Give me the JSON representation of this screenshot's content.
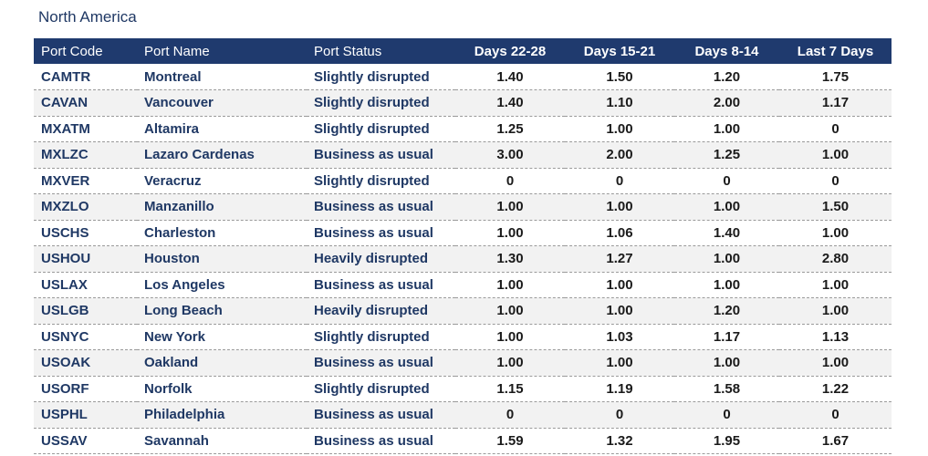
{
  "region": {
    "title": "North America"
  },
  "table": {
    "headers": {
      "port_code": "Port Code",
      "port_name": "Port Name",
      "port_status": "Port Status",
      "days_22_28": "Days 22-28",
      "days_15_21": "Days 15-21",
      "days_8_14": "Days 8-14",
      "last_7_days": "Last 7 Days"
    },
    "rows": [
      {
        "code": "CAMTR",
        "name": "Montreal",
        "status": "Slightly disrupted",
        "d22_28": "1.40",
        "d15_21": "1.50",
        "d8_14": "1.20",
        "last7": "1.75"
      },
      {
        "code": "CAVAN",
        "name": "Vancouver",
        "status": "Slightly disrupted",
        "d22_28": "1.40",
        "d15_21": "1.10",
        "d8_14": "2.00",
        "last7": "1.17"
      },
      {
        "code": "MXATM",
        "name": "Altamira",
        "status": "Slightly disrupted",
        "d22_28": "1.25",
        "d15_21": "1.00",
        "d8_14": "1.00",
        "last7": "0"
      },
      {
        "code": "MXLZC",
        "name": "Lazaro Cardenas",
        "status": "Business as usual",
        "d22_28": "3.00",
        "d15_21": "2.00",
        "d8_14": "1.25",
        "last7": "1.00"
      },
      {
        "code": "MXVER",
        "name": "Veracruz",
        "status": "Slightly disrupted",
        "d22_28": "0",
        "d15_21": "0",
        "d8_14": "0",
        "last7": "0"
      },
      {
        "code": "MXZLO",
        "name": "Manzanillo",
        "status": "Business as usual",
        "d22_28": "1.00",
        "d15_21": "1.00",
        "d8_14": "1.00",
        "last7": "1.50"
      },
      {
        "code": "USCHS",
        "name": "Charleston",
        "status": "Business as usual",
        "d22_28": "1.00",
        "d15_21": "1.06",
        "d8_14": "1.40",
        "last7": "1.00"
      },
      {
        "code": "USHOU",
        "name": "Houston",
        "status": "Heavily disrupted",
        "d22_28": "1.30",
        "d15_21": "1.27",
        "d8_14": "1.00",
        "last7": "2.80"
      },
      {
        "code": "USLAX",
        "name": "Los Angeles",
        "status": "Business as usual",
        "d22_28": "1.00",
        "d15_21": "1.00",
        "d8_14": "1.00",
        "last7": "1.00"
      },
      {
        "code": "USLGB",
        "name": "Long Beach",
        "status": "Heavily disrupted",
        "d22_28": "1.00",
        "d15_21": "1.00",
        "d8_14": "1.20",
        "last7": "1.00"
      },
      {
        "code": "USNYC",
        "name": "New York",
        "status": "Slightly disrupted",
        "d22_28": "1.00",
        "d15_21": "1.03",
        "d8_14": "1.17",
        "last7": "1.13"
      },
      {
        "code": "USOAK",
        "name": "Oakland",
        "status": "Business as usual",
        "d22_28": "1.00",
        "d15_21": "1.00",
        "d8_14": "1.00",
        "last7": "1.00"
      },
      {
        "code": "USORF",
        "name": "Norfolk",
        "status": "Slightly disrupted",
        "d22_28": "1.15",
        "d15_21": "1.19",
        "d8_14": "1.58",
        "last7": "1.22"
      },
      {
        "code": "USPHL",
        "name": "Philadelphia",
        "status": "Business as usual",
        "d22_28": "0",
        "d15_21": "0",
        "d8_14": "0",
        "last7": "0"
      },
      {
        "code": "USSAV",
        "name": "Savannah",
        "status": "Business as usual",
        "d22_28": "1.59",
        "d15_21": "1.32",
        "d8_14": "1.95",
        "last7": "1.67"
      }
    ]
  }
}
